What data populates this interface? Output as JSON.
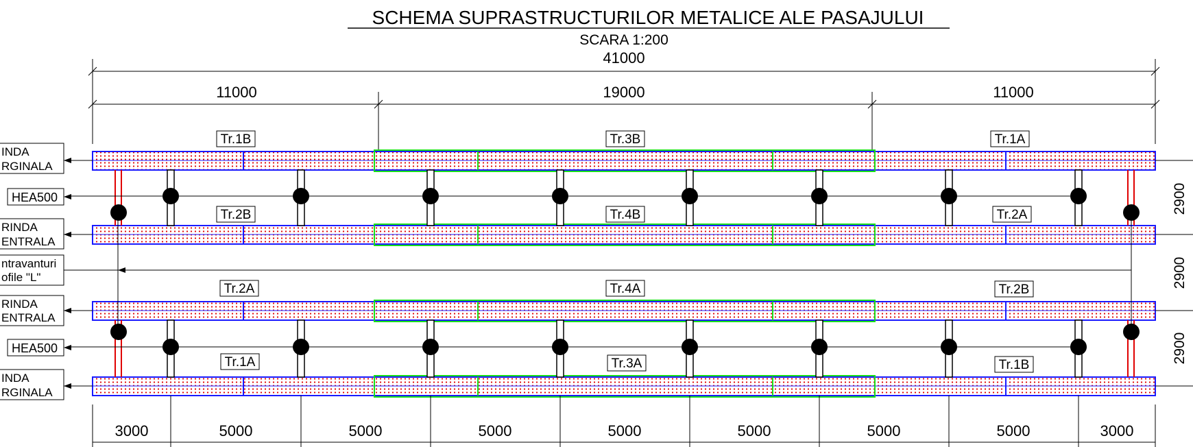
{
  "title": "SCHEMA SUPRASTRUCTURILOR METALICE ALE PASAJULUI",
  "scale": "SCARA  1:200",
  "overall_dim": "41000",
  "span_dims": [
    "11000",
    "19000",
    "11000"
  ],
  "bottom_dims": [
    "3000",
    "5000",
    "5000",
    "5000",
    "5000",
    "5000",
    "5000",
    "5000",
    "3000"
  ],
  "right_dims": [
    "2900",
    "2900",
    "2900"
  ],
  "girder_labels": {
    "row1": [
      "Tr.1B",
      "Tr.3B",
      "Tr.1A"
    ],
    "row2": [
      "Tr.2B",
      "Tr.4B",
      "Tr.2A"
    ],
    "row3": [
      "Tr.2A",
      "Tr.4A",
      "Tr.2B"
    ],
    "row4": [
      "Tr.1A",
      "Tr.3A",
      "Tr.1B"
    ]
  },
  "left_annotations": [
    [
      "INDA",
      "RGINALA"
    ],
    [
      "HEA500"
    ],
    [
      "RINDA",
      "ENTRALA"
    ],
    [
      "ntravanturi",
      "ofile \"L\""
    ],
    [
      "RINDA",
      "ENTRALA"
    ],
    [
      "HEA500"
    ],
    [
      "INDA",
      "RGINALA"
    ]
  ],
  "colors": {
    "outline": "#1a1aff",
    "hatch_red": "#e00000",
    "center_span": "#19e019",
    "line": "#000000"
  }
}
